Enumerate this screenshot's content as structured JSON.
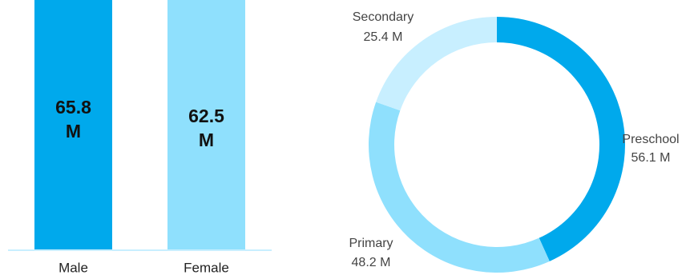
{
  "colors": {
    "bar_male": "#00a9ec",
    "bar_female": "#8fe0fd",
    "slice_preschool": "#00a9ec",
    "slice_primary": "#8fe0fd",
    "slice_secondary": "#c8efff",
    "baseline": "#c8efff"
  },
  "chart_data": [
    {
      "type": "bar",
      "categories": [
        "Male",
        "Female"
      ],
      "values": [
        65.8,
        62.5
      ],
      "value_labels": [
        [
          "65.8",
          "M"
        ],
        [
          "62.5",
          "M"
        ]
      ],
      "unit": "M",
      "grid": false,
      "legend": "none"
    },
    {
      "type": "pie",
      "variant": "donut",
      "categories": [
        "Preschool",
        "Primary",
        "Secondary"
      ],
      "values": [
        56.1,
        48.2,
        25.4
      ],
      "value_labels": [
        "56.1 M",
        "48.2 M",
        "25.4 M"
      ],
      "unit": "M",
      "legend": "none"
    }
  ]
}
